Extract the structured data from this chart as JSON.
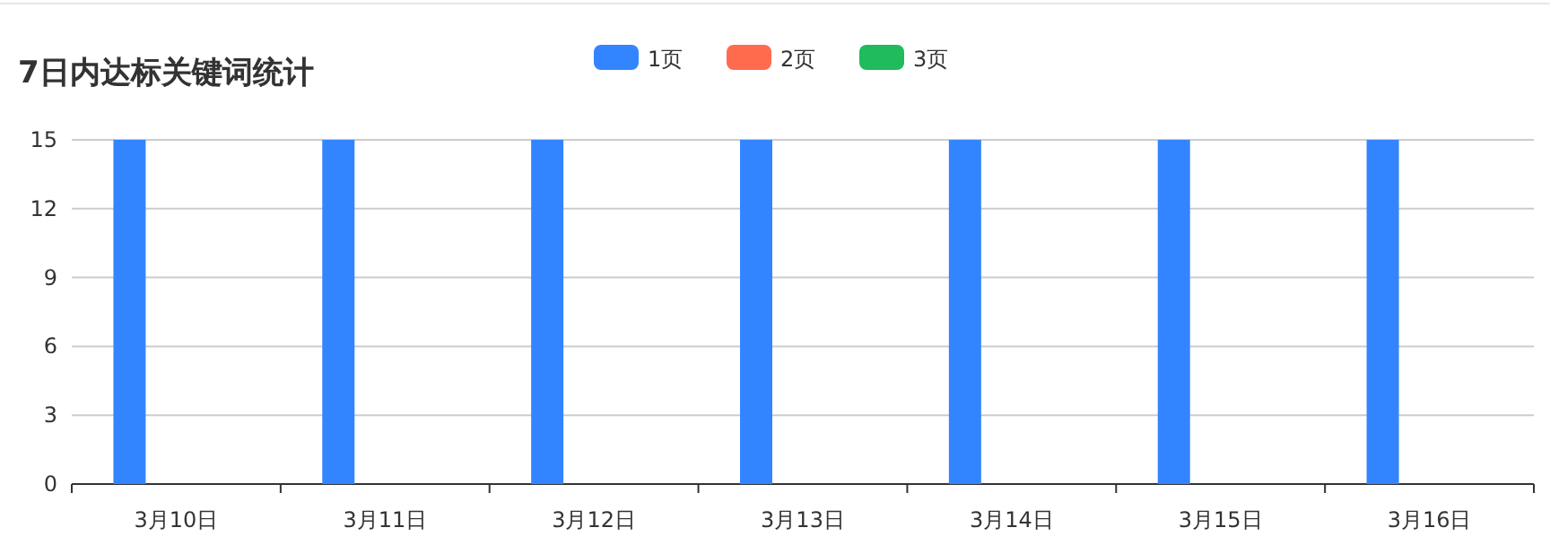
{
  "chart_data": {
    "type": "bar",
    "title": "7日内达标关键词统计",
    "categories": [
      "3月10日",
      "3月11日",
      "3月12日",
      "3月13日",
      "3月14日",
      "3月15日",
      "3月16日"
    ],
    "series": [
      {
        "name": "1页",
        "color": "#3385ff",
        "values": [
          15,
          15,
          15,
          15,
          15,
          15,
          15
        ]
      },
      {
        "name": "2页",
        "color": "#ff6b4d",
        "values": [
          0,
          0,
          0,
          0,
          0,
          0,
          0
        ]
      },
      {
        "name": "3页",
        "color": "#1fbb5c",
        "values": [
          0,
          0,
          0,
          0,
          0,
          0,
          0
        ]
      }
    ],
    "ylim": [
      0,
      15
    ],
    "yticks": [
      0,
      3,
      6,
      9,
      12,
      15
    ],
    "grid": "y",
    "legend": "top"
  }
}
